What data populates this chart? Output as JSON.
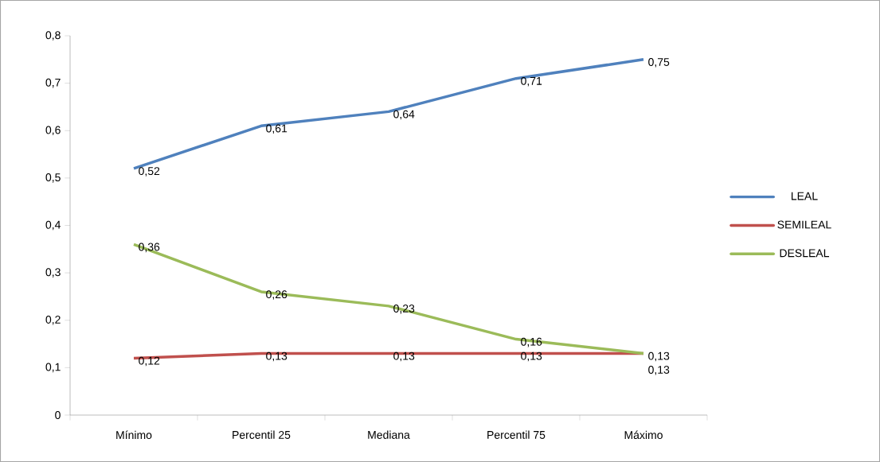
{
  "chart_data": {
    "type": "line",
    "categories": [
      "Mínimo",
      "Percentil 25",
      "Mediana",
      "Percentil 75",
      "Máximo"
    ],
    "series": [
      {
        "name": "LEAL",
        "color": "#4f81bd",
        "values": [
          0.52,
          0.61,
          0.64,
          0.71,
          0.75
        ],
        "value_labels": [
          "0,52",
          "0,61",
          "0,64",
          "0,71",
          "0,75"
        ]
      },
      {
        "name": "SEMILEAL",
        "color": "#c0504d",
        "values": [
          0.12,
          0.13,
          0.13,
          0.13,
          0.13
        ],
        "value_labels": [
          "0,12",
          "0,13",
          "0,13",
          "0,13",
          "0,13"
        ]
      },
      {
        "name": "DESLEAL",
        "color": "#9bbb59",
        "values": [
          0.36,
          0.26,
          0.23,
          0.16,
          0.13
        ],
        "value_labels": [
          "0,36",
          "0,26",
          "0,23",
          "0,16",
          "0,13"
        ]
      }
    ],
    "ylim": [
      0,
      0.8
    ],
    "yticks": [
      0,
      {
        "value": 0.1,
        "label": "0,1"
      },
      {
        "value": 0.2,
        "label": "0,2"
      },
      {
        "value": 0.3,
        "label": "0,3"
      },
      {
        "value": 0.4,
        "label": "0,4"
      },
      {
        "value": 0.5,
        "label": "0,5"
      },
      {
        "value": 0.6,
        "label": "0,6"
      },
      {
        "value": 0.7,
        "label": "0,7"
      },
      {
        "value": 0.8,
        "label": "0,8"
      }
    ],
    "grid": false,
    "legend": "right",
    "line_style": "solid"
  }
}
